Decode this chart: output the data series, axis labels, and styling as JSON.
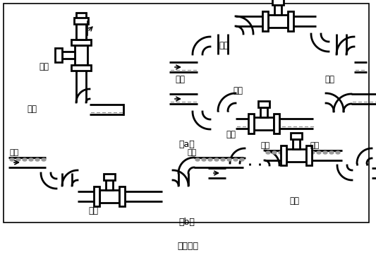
{
  "title": "图（四）",
  "label_a": "（a）",
  "label_b": "（b）",
  "bg_color": "#ffffff",
  "lc": "#000000",
  "lw": 2.0,
  "g": 0.055,
  "labels": {
    "correct": "正确",
    "wrong": "错误",
    "liquid": "液体",
    "bubble": "气泡"
  }
}
